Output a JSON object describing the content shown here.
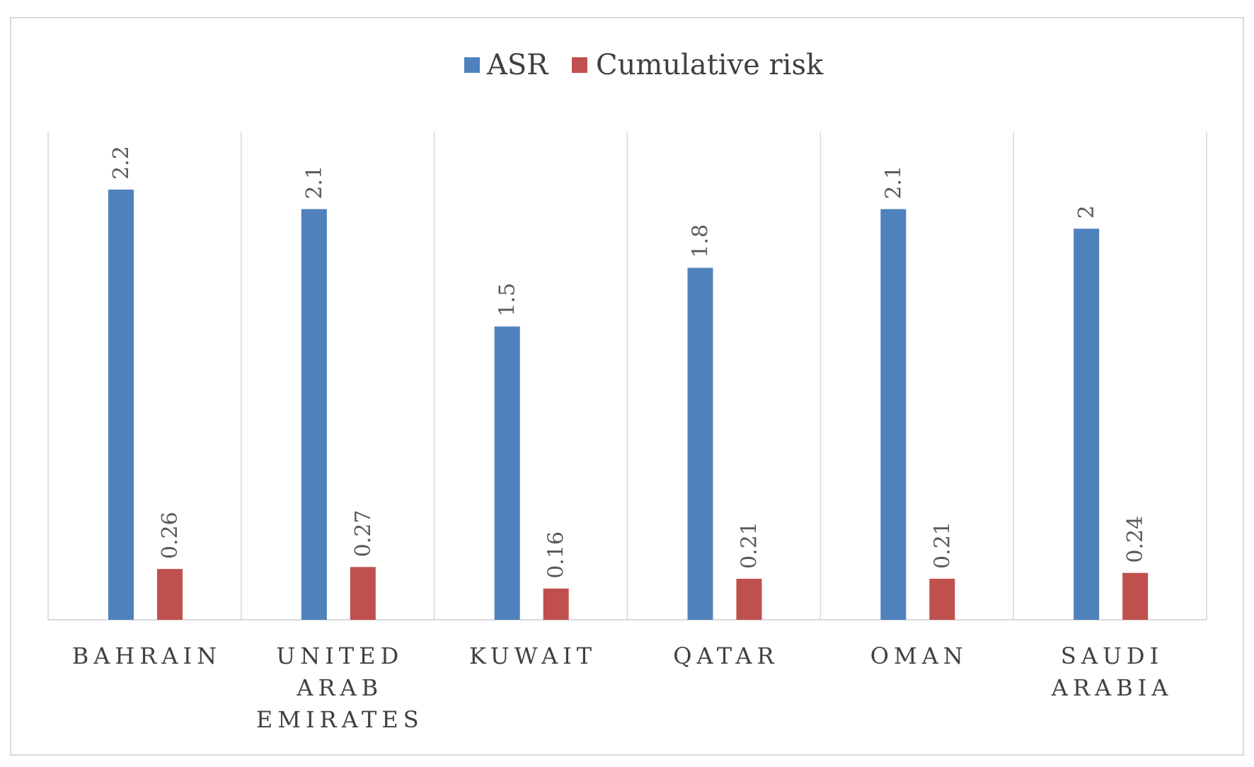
{
  "chart_data": {
    "type": "bar",
    "categories": [
      "BAHRAIN",
      "UNITED ARAB EMIRATES",
      "KUWAIT",
      "QATAR",
      "OMAN",
      "SAUDI ARABIA"
    ],
    "category_lines": [
      [
        "BAHRAIN"
      ],
      [
        "UNITED",
        "ARAB",
        "EMIRATES"
      ],
      [
        "KUWAIT"
      ],
      [
        "QATAR"
      ],
      [
        "OMAN"
      ],
      [
        "SAUDI",
        "ARABIA"
      ]
    ],
    "series": [
      {
        "name": "ASR",
        "color": "#4f81bd",
        "values": [
          2.2,
          2.1,
          1.5,
          1.8,
          2.1,
          2
        ],
        "labels": [
          "2.2",
          "2.1",
          "1.5",
          "1.8",
          "2.1",
          "2"
        ]
      },
      {
        "name": "Cumulative risk",
        "color": "#c0504d",
        "values": [
          0.26,
          0.27,
          0.16,
          0.21,
          0.21,
          0.24
        ],
        "labels": [
          "0.26",
          "0.27",
          "0.16",
          "0.21",
          "0.21",
          "0.24"
        ]
      }
    ],
    "ylim": [
      0,
      2.5
    ],
    "legend_position": "top",
    "grid": "vertical category separators",
    "gridline_color": "#d9d9d9",
    "axis_color": "#d9d9d9"
  }
}
